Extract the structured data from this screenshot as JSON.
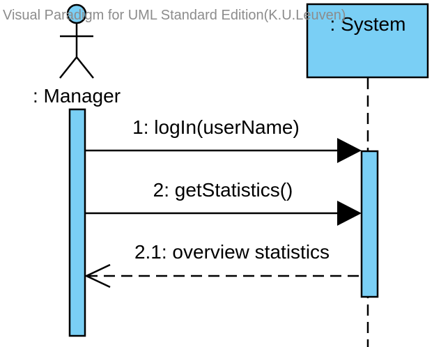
{
  "watermark": "Visual Paradigm for UML Standard Edition(K.U.Leuven)",
  "colors": {
    "fill": "#7acff5",
    "line": "#000000",
    "watermark": "#8c8c8c"
  },
  "lifelines": {
    "manager": {
      "name": ": Manager",
      "kind": "actor"
    },
    "system": {
      "name": ": System",
      "kind": "object"
    }
  },
  "messages": [
    {
      "label": "1: logIn(userName)",
      "type": "synchronous",
      "from": "manager",
      "to": "system"
    },
    {
      "label": "2: getStatistics()",
      "type": "synchronous",
      "from": "manager",
      "to": "system"
    },
    {
      "label": "2.1: overview statistics",
      "type": "return",
      "from": "system",
      "to": "manager"
    }
  ]
}
